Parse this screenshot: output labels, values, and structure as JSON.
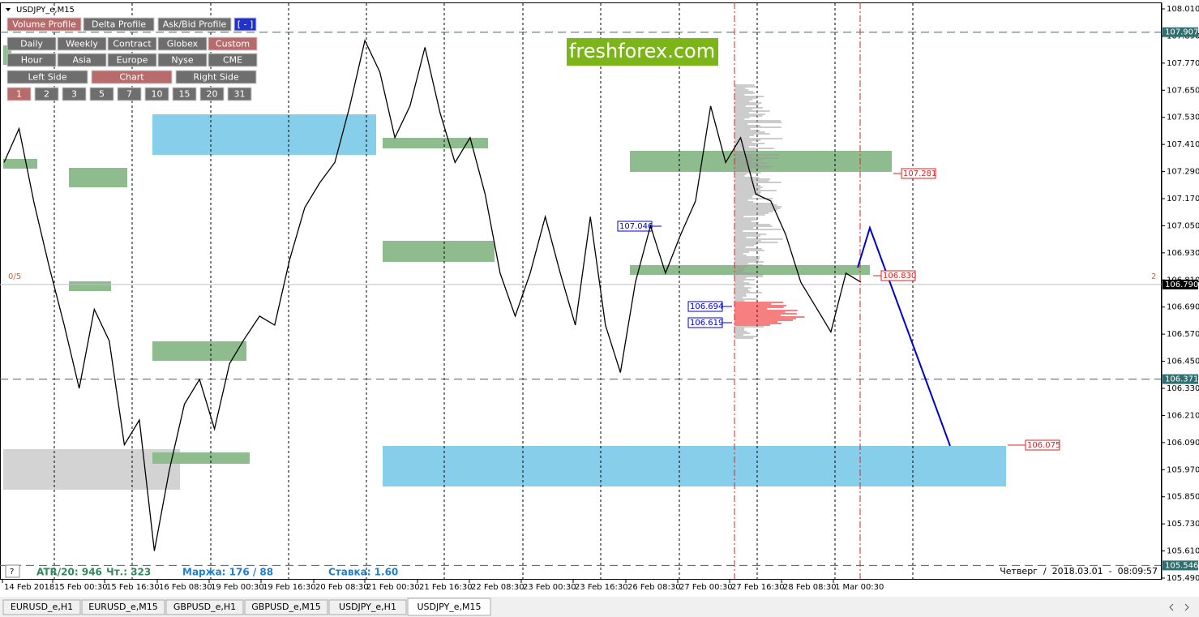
{
  "header": {
    "symbol": "USDJPY_e,M15"
  },
  "toolbar": {
    "rows": [
      [
        "Volume Profile",
        "Delta Profile",
        "Ask/Bid Profile",
        "[ - ]"
      ],
      [
        "Daily",
        "Weekly",
        "Contract",
        "Globex",
        "Custom"
      ],
      [
        "Hour",
        "Asia",
        "Europe",
        "Nyse",
        "CME"
      ],
      [
        "Left Side",
        "Chart",
        "Right Side"
      ],
      [
        "1",
        "2",
        "3",
        "5",
        "7",
        "10",
        "15",
        "20",
        "31"
      ]
    ],
    "active": [
      0,
      4,
      null,
      1,
      0
    ]
  },
  "watermark": "freshforex.com",
  "price_axis": {
    "ylim": [
      105.49,
      108.01
    ],
    "ticks": [
      {
        "value": 108.01,
        "label": "108.010"
      },
      {
        "value": 107.89,
        "label": "107.890"
      },
      {
        "value": 107.77,
        "label": "107.770"
      },
      {
        "value": 107.65,
        "label": "107.650"
      },
      {
        "value": 107.53,
        "label": "107.530"
      },
      {
        "value": 107.41,
        "label": "107.410"
      },
      {
        "value": 107.29,
        "label": "107.290"
      },
      {
        "value": 107.17,
        "label": "107.170"
      },
      {
        "value": 107.05,
        "label": "107.050"
      },
      {
        "value": 106.93,
        "label": "106.930"
      },
      {
        "value": 106.81,
        "label": "106.810"
      },
      {
        "value": 106.69,
        "label": "106.690"
      },
      {
        "value": 106.57,
        "label": "106.570"
      },
      {
        "value": 106.45,
        "label": "106.450"
      },
      {
        "value": 106.33,
        "label": "106.330"
      },
      {
        "value": 106.21,
        "label": "106.210"
      },
      {
        "value": 106.09,
        "label": "106.090"
      },
      {
        "value": 105.97,
        "label": "105.970"
      },
      {
        "value": 105.85,
        "label": "105.850"
      },
      {
        "value": 105.73,
        "label": "105.730"
      },
      {
        "value": 105.61,
        "label": "105.610"
      },
      {
        "value": 105.49,
        "label": "105.490"
      }
    ],
    "levels": [
      107.907,
      106.371,
      105.546
    ],
    "current_price": {
      "value": 106.79,
      "label": "106.790"
    }
  },
  "time_axis": {
    "labels": [
      "14 Feb 2018",
      "15 Feb 00:30",
      "15 Feb 16:30",
      "16 Feb 08:30",
      "19 Feb 00:30",
      "19 Feb 16:30",
      "20 Feb 08:30",
      "21 Feb 00:30",
      "21 Feb 16:30",
      "22 Feb 08:30",
      "23 Feb 00:30",
      "23 Feb 16:30",
      "26 Feb 08:30",
      "27 Feb 00:30",
      "27 Feb 16:30",
      "28 Feb 08:30",
      "1 Mar 00:30"
    ]
  },
  "price": {
    "values": [
      107.33,
      107.48,
      107.15,
      106.87,
      106.61,
      106.33,
      106.68,
      106.54,
      106.08,
      106.19,
      105.61,
      105.97,
      106.26,
      106.37,
      106.15,
      106.44,
      106.55,
      106.65,
      106.61,
      106.9,
      107.13,
      107.24,
      107.33,
      107.58,
      107.87,
      107.73,
      107.44,
      107.58,
      107.84,
      107.55,
      107.33,
      107.44,
      107.19,
      106.84,
      106.65,
      106.84,
      107.09,
      106.84,
      106.61,
      107.09,
      106.61,
      106.4,
      106.8,
      107.05,
      106.84,
      107.01,
      107.16,
      107.58,
      107.33,
      107.44,
      107.19,
      107.16,
      107.01,
      106.8,
      106.69,
      106.58,
      106.84,
      106.8
    ]
  },
  "annotations": {
    "red": [
      "107.281",
      "106.830",
      "106.075"
    ],
    "blue": [
      "107.046",
      "106.694",
      "106.619"
    ]
  },
  "markers": {
    "left": "0/5",
    "right": "2"
  },
  "status": {
    "atr": "ATR/20: 946",
    "count": "Чт.: 323",
    "margin": "Маржа: 176 / 88",
    "rate": "Ставка: 1.60",
    "help": "?",
    "datetime": "Четверг  /  2018.03.01  -  08:09:57"
  },
  "tabs": {
    "items": [
      "EURUSD_e,H1",
      "EURUSD_e,M15",
      "GBPUSD_e,H1",
      "GBPUSD_e,M15",
      "USDJPY_e,H1",
      "USDJPY_e,M15"
    ],
    "active": 5
  }
}
